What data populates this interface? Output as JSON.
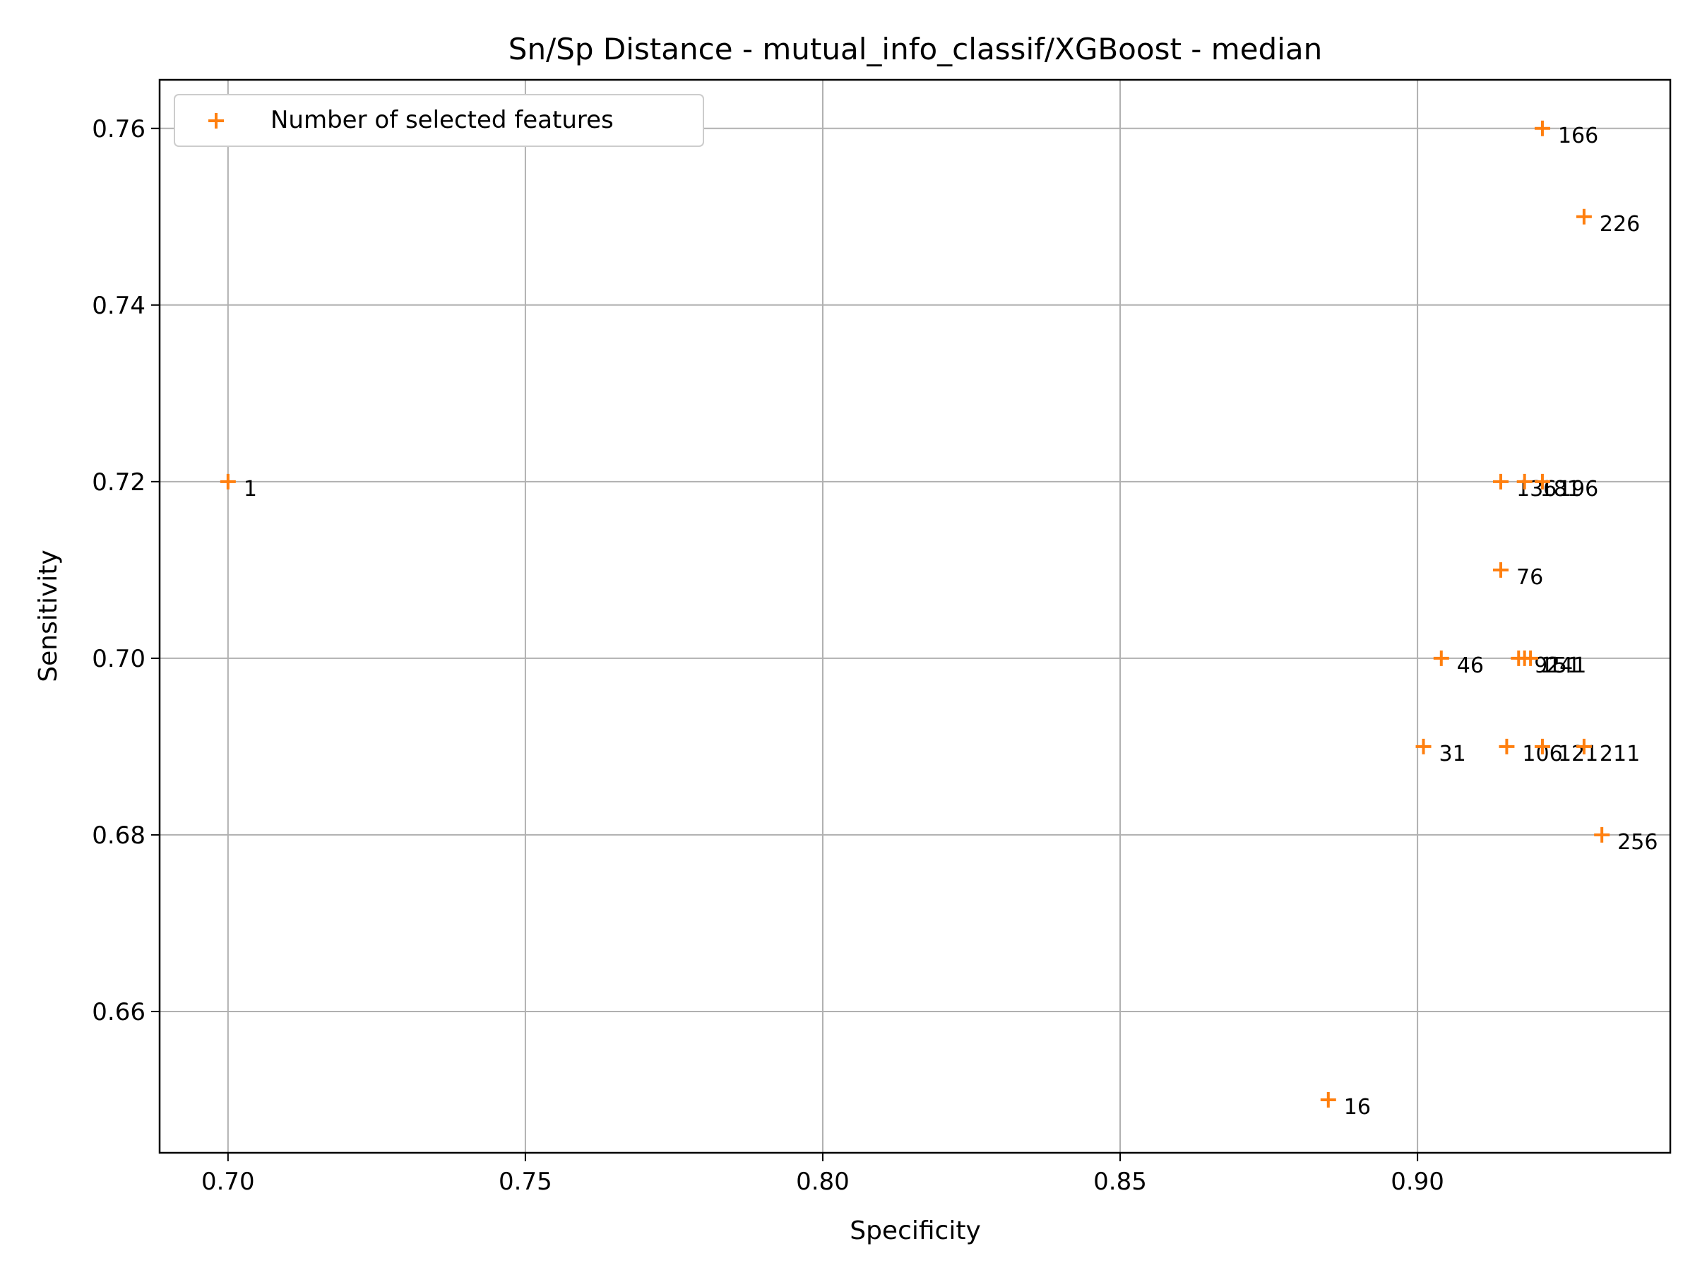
{
  "chart_data": {
    "type": "scatter",
    "title": "Sn/Sp Distance - mutual_info_classif/XGBoost - median",
    "xlabel": "Specificity",
    "ylabel": "Sensitivity",
    "xlim": [
      0.6885,
      0.9425
    ],
    "ylim": [
      0.644,
      0.7655
    ],
    "xticks": [
      "0.70",
      "0.75",
      "0.80",
      "0.85",
      "0.90"
    ],
    "yticks": [
      "0.66",
      "0.68",
      "0.70",
      "0.72",
      "0.74",
      "0.76"
    ],
    "grid": true,
    "legend_position": "upper-left",
    "marker": "+",
    "series": [
      {
        "name": "Number of selected features",
        "color": "#ff7f0e",
        "points": [
          {
            "x": 0.7,
            "y": 0.72,
            "label": "1"
          },
          {
            "x": 0.885,
            "y": 0.65,
            "label": "16"
          },
          {
            "x": 0.901,
            "y": 0.69,
            "label": "31"
          },
          {
            "x": 0.904,
            "y": 0.7,
            "label": "46"
          },
          {
            "x": 0.914,
            "y": 0.71,
            "label": "76"
          },
          {
            "x": 0.917,
            "y": 0.7,
            "label": "91"
          },
          {
            "x": 0.915,
            "y": 0.69,
            "label": "106"
          },
          {
            "x": 0.921,
            "y": 0.69,
            "label": "121"
          },
          {
            "x": 0.914,
            "y": 0.72,
            "label": "136"
          },
          {
            "x": 0.918,
            "y": 0.7,
            "label": "151"
          },
          {
            "x": 0.921,
            "y": 0.76,
            "label": "166"
          },
          {
            "x": 0.918,
            "y": 0.72,
            "label": "181"
          },
          {
            "x": 0.921,
            "y": 0.72,
            "label": "196"
          },
          {
            "x": 0.928,
            "y": 0.69,
            "label": "211"
          },
          {
            "x": 0.928,
            "y": 0.75,
            "label": "226"
          },
          {
            "x": 0.919,
            "y": 0.7,
            "label": "241"
          },
          {
            "x": 0.931,
            "y": 0.68,
            "label": "256"
          }
        ]
      }
    ]
  }
}
